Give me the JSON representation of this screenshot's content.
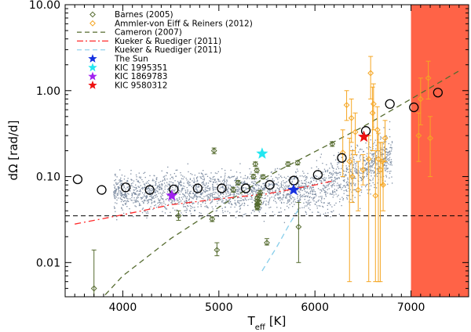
{
  "chart_data": {
    "type": "scatter",
    "xlabel_main": "T",
    "xlabel_sub": "eff",
    "xlabel_unit": "[K]",
    "ylabel": "dΩ [rad/d]",
    "xscale": "linear",
    "yscale": "log",
    "xlim": [
      3400,
      7600
    ],
    "ylim": [
      0.004,
      10
    ],
    "xticks": [
      4000,
      5000,
      6000,
      7000
    ],
    "xtick_labels": [
      "4000",
      "5000",
      "6000",
      "7000"
    ],
    "yticks": [
      0.01,
      0.1,
      1,
      10
    ],
    "ytick_labels": [
      "0.01",
      "0.10",
      "1.00",
      "10.00"
    ],
    "shaded_region": {
      "x_from": 7000,
      "x_to": 7600,
      "color": "#ff6347"
    },
    "reference_line": {
      "y": 0.035,
      "style": "dashed",
      "color": "#000000"
    },
    "legend": [
      {
        "label": "Barnes (2005)",
        "marker": "diamond",
        "color": "#556b2f"
      },
      {
        "label": "Ammler-von Eiff & Reiners (2012)",
        "marker": "diamond",
        "color": "#f5a623"
      },
      {
        "label": "Cameron (2007)",
        "marker": "dash",
        "color": "#556b2f"
      },
      {
        "label": "Kueker & Ruediger (2011)",
        "marker": "dashdot",
        "color": "#ff2a2a"
      },
      {
        "label": "Kueker & Ruediger (2011)",
        "marker": "dash",
        "color": "#87ceeb"
      },
      {
        "label": "The Sun",
        "marker": "star",
        "color": "#1530e0"
      },
      {
        "label": "KIC 1995351",
        "marker": "star",
        "color": "#22e6f0"
      },
      {
        "label": "KIC 1869783",
        "marker": "star",
        "color": "#a020f0"
      },
      {
        "label": "KIC 9580312",
        "marker": "star",
        "color": "#ee1111"
      }
    ],
    "series": [
      {
        "name": "Binned medians (open circles)",
        "color": "#000000",
        "points": [
          [
            3530,
            0.093
          ],
          [
            3780,
            0.07
          ],
          [
            4030,
            0.075
          ],
          [
            4280,
            0.07
          ],
          [
            4530,
            0.071
          ],
          [
            4780,
            0.073
          ],
          [
            5030,
            0.073
          ],
          [
            5280,
            0.073
          ],
          [
            5530,
            0.08
          ],
          [
            5780,
            0.09
          ],
          [
            6030,
            0.105
          ],
          [
            6280,
            0.165
          ],
          [
            6530,
            0.34
          ],
          [
            6780,
            0.7
          ],
          [
            7030,
            0.64
          ],
          [
            7280,
            0.95
          ]
        ]
      },
      {
        "name": "Barnes (2005)",
        "color": "#556b2f",
        "points": [
          [
            3700,
            0.005,
            0.003,
            0.014
          ],
          [
            4580,
            0.035,
            0.031,
            0.04
          ],
          [
            4930,
            0.032,
            0.03,
            0.034
          ],
          [
            4950,
            0.2,
            0.185,
            0.215
          ],
          [
            4980,
            0.014,
            0.012,
            0.017
          ],
          [
            5150,
            0.07,
            0.066,
            0.075
          ],
          [
            5200,
            0.085,
            0.08,
            0.09
          ],
          [
            5360,
            0.1,
            0.095,
            0.106
          ],
          [
            5380,
            0.14,
            0.132,
            0.148
          ],
          [
            5395,
            0.118,
            0.112,
            0.125
          ],
          [
            5400,
            0.056,
            0.053,
            0.059
          ],
          [
            5400,
            0.052,
            0.049,
            0.055
          ],
          [
            5400,
            0.048,
            0.045,
            0.051
          ],
          [
            5400,
            0.045,
            0.042,
            0.048
          ],
          [
            5400,
            0.044,
            0.041,
            0.047
          ],
          [
            5420,
            0.06,
            0.057,
            0.064
          ],
          [
            5420,
            0.05,
            0.047,
            0.053
          ],
          [
            5430,
            0.065,
            0.061,
            0.069
          ],
          [
            5460,
            0.099,
            0.094,
            0.105
          ],
          [
            5500,
            0.017,
            0.016,
            0.019
          ],
          [
            5720,
            0.14,
            0.132,
            0.148
          ],
          [
            5820,
            0.145,
            0.137,
            0.153
          ],
          [
            5830,
            0.026,
            0.01,
            0.05
          ],
          [
            6180,
            0.24,
            0.225,
            0.255
          ]
        ]
      },
      {
        "name": "Ammler-von Eiff & Reiners (2012)",
        "color": "#f5a623",
        "points": [
          [
            6290,
            0.19,
            0.1,
            0.35
          ],
          [
            6330,
            0.68,
            0.45,
            1.0
          ],
          [
            6360,
            0.15,
            0.006,
            0.28
          ],
          [
            6380,
            0.48,
            0.25,
            0.8
          ],
          [
            6390,
            0.1,
            0.05,
            0.2
          ],
          [
            6420,
            0.33,
            0.18,
            0.55
          ],
          [
            6450,
            0.07,
            0.04,
            0.15
          ],
          [
            6500,
            0.12,
            0.08,
            0.18
          ],
          [
            6560,
            0.16,
            0.006,
            0.3
          ],
          [
            6580,
            1.6,
            0.8,
            2.5
          ],
          [
            6600,
            0.55,
            0.2,
            1.1
          ],
          [
            6610,
            0.7,
            0.35,
            1.2
          ],
          [
            6630,
            0.06,
            0.006,
            0.2
          ],
          [
            6650,
            0.35,
            0.2,
            0.65
          ],
          [
            6660,
            0.16,
            0.006,
            0.32
          ],
          [
            6680,
            0.12,
            0.006,
            0.25
          ],
          [
            6700,
            0.15,
            0.08,
            0.25
          ],
          [
            6710,
            0.08,
            0.04,
            0.15
          ],
          [
            6730,
            0.28,
            0.15,
            0.45
          ],
          [
            7080,
            0.3,
            0.15,
            0.55
          ],
          [
            7100,
            0.8,
            0.4,
            1.4
          ],
          [
            7180,
            1.4,
            0.8,
            2.2
          ],
          [
            7200,
            0.28,
            0.1,
            0.5
          ]
        ]
      }
    ],
    "stars": [
      {
        "name": "The Sun",
        "x": 5778,
        "y": 0.07,
        "color": "#1530e0"
      },
      {
        "name": "KIC 1995351",
        "x": 5450,
        "y": 0.185,
        "color": "#22e6f0"
      },
      {
        "name": "KIC 1869783",
        "x": 4510,
        "y": 0.06,
        "color": "#a020f0"
      },
      {
        "name": "KIC 9580312",
        "x": 6510,
        "y": 0.29,
        "color": "#ee1111"
      }
    ],
    "curves": [
      {
        "name": "Cameron (2007)",
        "style": "dashed",
        "color": "#556b2f",
        "points": [
          [
            3750,
            0.0035
          ],
          [
            4000,
            0.007
          ],
          [
            4500,
            0.019
          ],
          [
            5000,
            0.044
          ],
          [
            5500,
            0.1
          ],
          [
            6000,
            0.195
          ],
          [
            6500,
            0.38
          ],
          [
            7000,
            0.8
          ],
          [
            7500,
            1.7
          ]
        ]
      },
      {
        "name": "Kueker & Ruediger (2011) (red)",
        "style": "dashdot",
        "color": "#ff2a2a",
        "points": [
          [
            3500,
            0.028
          ],
          [
            4000,
            0.036
          ],
          [
            4500,
            0.047
          ],
          [
            5000,
            0.055
          ],
          [
            5500,
            0.063
          ],
          [
            6000,
            0.08
          ],
          [
            6200,
            0.09
          ]
        ]
      },
      {
        "name": "Kueker & Ruediger (2011) (blue)",
        "style": "dashed",
        "color": "#87ceeb",
        "points": [
          [
            5450,
            0.008
          ],
          [
            5600,
            0.015
          ],
          [
            5750,
            0.03
          ],
          [
            5850,
            0.045
          ]
        ]
      }
    ],
    "background_cloud": {
      "description_count": 2600,
      "x_range": [
        3900,
        6800
      ],
      "color": "#7f8ea3"
    }
  }
}
